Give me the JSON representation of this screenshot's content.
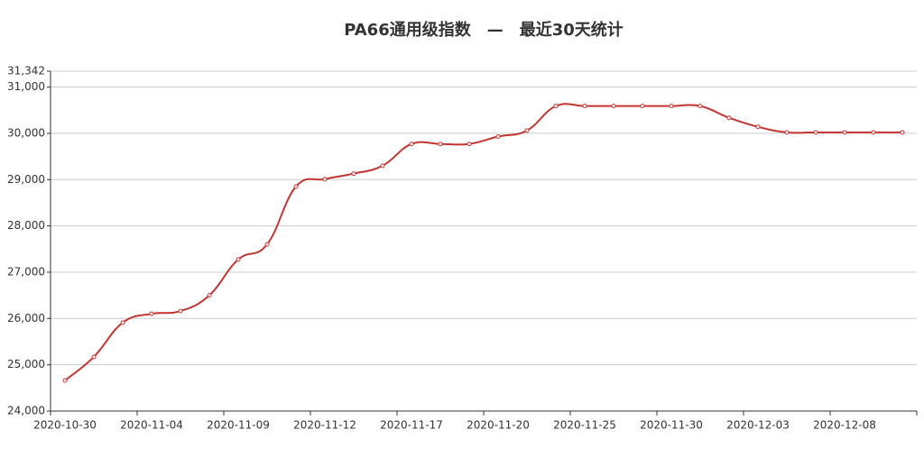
{
  "chart_data": {
    "type": "line",
    "title": "PA66通用级指数　—　最近30天统计",
    "categories": [
      "2020-10-30",
      null,
      null,
      "2020-11-04",
      null,
      null,
      "2020-11-09",
      null,
      null,
      "2020-11-12",
      null,
      null,
      "2020-11-17",
      null,
      null,
      "2020-11-20",
      null,
      null,
      "2020-11-25",
      null,
      null,
      "2020-11-30",
      null,
      null,
      "2020-12-03",
      null,
      null,
      "2020-12-08",
      null,
      null
    ],
    "series": [
      {
        "name": "PA66通用级指数",
        "color": "#c23531",
        "values": [
          24660,
          25170,
          25910,
          26100,
          26160,
          26500,
          27275,
          27600,
          28850,
          29010,
          29130,
          29300,
          29770,
          29770,
          29770,
          29930,
          30060,
          30590,
          30590,
          30590,
          30590,
          30590,
          30590,
          30335,
          30140,
          30020,
          30020,
          30020,
          30020,
          30020
        ]
      }
    ],
    "ylim": [
      24000,
      31342
    ],
    "yticks": [
      {
        "value": 24000,
        "label": "24,000"
      },
      {
        "value": 25000,
        "label": "25,000"
      },
      {
        "value": 26000,
        "label": "26,000"
      },
      {
        "value": 27000,
        "label": "27,000"
      },
      {
        "value": 28000,
        "label": "28,000"
      },
      {
        "value": 29000,
        "label": "29,000"
      },
      {
        "value": 30000,
        "label": "30,000"
      },
      {
        "value": 31000,
        "label": "31,000"
      },
      {
        "value": 31342,
        "label": "31,342"
      }
    ],
    "grid": true
  }
}
